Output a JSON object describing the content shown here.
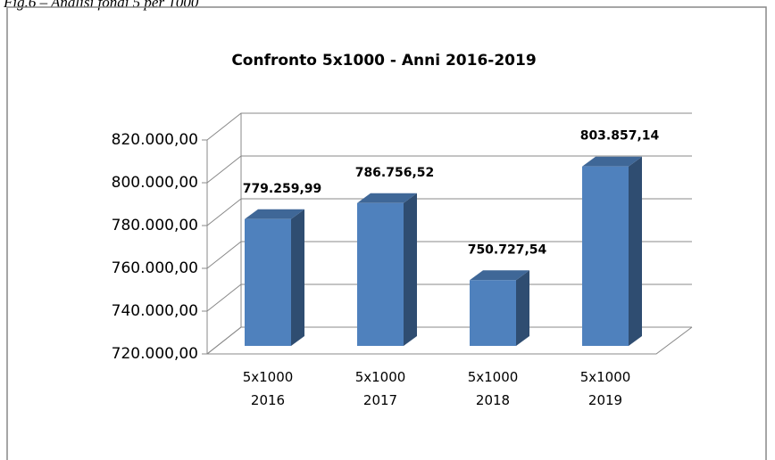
{
  "caption": "Fig.6 – Analisi fondi 5 per 1000",
  "chart_data": {
    "type": "bar3d",
    "title": "Confronto 5x1000 - Anni 2016-2019",
    "categories": [
      "5x1000 2016",
      "5x1000 2017",
      "5x1000 2018",
      "5x1000 2019"
    ],
    "values": [
      779259.99,
      786756.52,
      750727.54,
      803857.14
    ],
    "value_labels": [
      "779.259,99",
      "786.756,52",
      "750.727,54",
      "803.857,14"
    ],
    "color": "#4f81bd",
    "ylim": [
      720000,
      820000
    ],
    "yticks": [
      {
        "value": 720000,
        "label": "720.000,00"
      },
      {
        "value": 740000,
        "label": "740.000,00"
      },
      {
        "value": 760000,
        "label": "760.000,00"
      },
      {
        "value": 780000,
        "label": "780.000,00"
      },
      {
        "value": 800000,
        "label": "800.000,00"
      },
      {
        "value": 820000,
        "label": "820.000,00"
      }
    ],
    "grid": true
  }
}
